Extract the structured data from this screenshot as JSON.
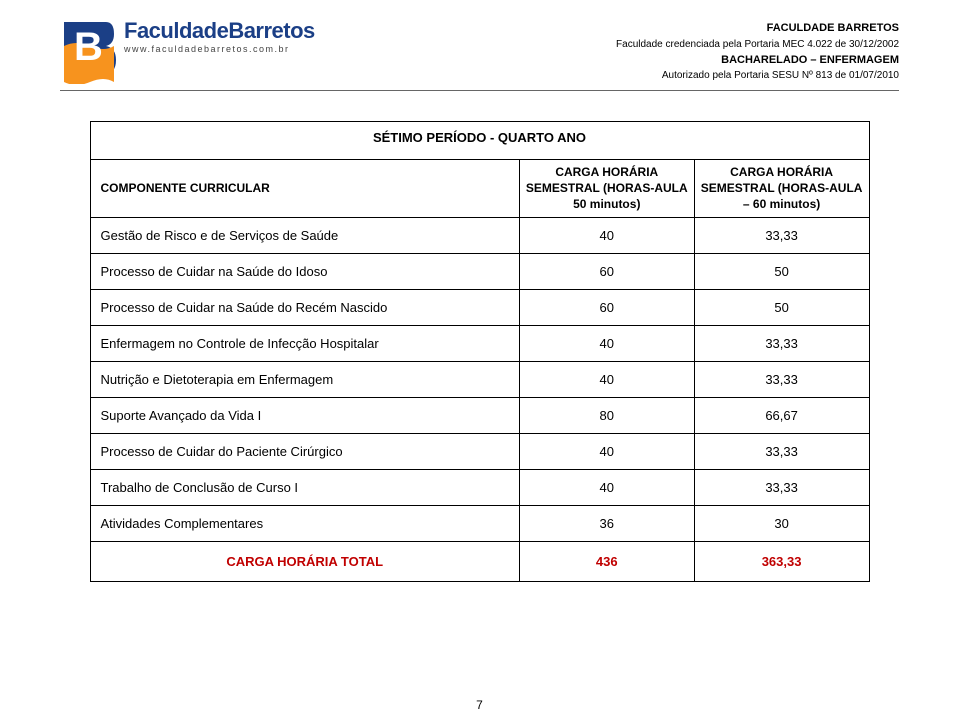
{
  "header": {
    "logo_fac": "Faculdade",
    "logo_bar": "Barretos",
    "logo_url": "www.faculdadebarretos.com.br",
    "line1": "FACULDADE BARRETOS",
    "line2": "Faculdade credenciada pela Portaria MEC 4.022 de 30/12/2002",
    "line3": "BACHARELADO – ENFERMAGEM",
    "line4": "Autorizado pela Portaria SESU Nº 813 de 01/07/2010"
  },
  "table": {
    "title": "SÉTIMO PERÍODO - QUARTO ANO",
    "columns": {
      "c1": "COMPONENTE CURRICULAR",
      "c2": "CARGA HORÁRIA SEMESTRAL (HORAS-AULA 50 minutos)",
      "c3": "CARGA HORÁRIA SEMESTRAL (HORAS-AULA – 60 minutos)"
    },
    "col_widths": {
      "c1": 430,
      "c2": 175,
      "c3": 175
    },
    "rows": [
      {
        "label": "Gestão de Risco e de Serviços de Saúde",
        "v1": "40",
        "v2": "33,33"
      },
      {
        "label": "Processo de Cuidar na Saúde do Idoso",
        "v1": "60",
        "v2": "50"
      },
      {
        "label": "Processo de Cuidar na Saúde do Recém Nascido",
        "v1": "60",
        "v2": "50"
      },
      {
        "label": "Enfermagem no Controle de Infecção Hospitalar",
        "v1": "40",
        "v2": "33,33"
      },
      {
        "label": "Nutrição e Dietoterapia em Enfermagem",
        "v1": "40",
        "v2": "33,33"
      },
      {
        "label": "Suporte Avançado da Vida I",
        "v1": "80",
        "v2": "66,67"
      },
      {
        "label": "Processo de Cuidar do Paciente Cirúrgico",
        "v1": "40",
        "v2": "33,33"
      },
      {
        "label": "Trabalho de Conclusão de Curso I",
        "v1": "40",
        "v2": "33,33"
      },
      {
        "label": "Atividades Complementares",
        "v1": "36",
        "v2": "30"
      }
    ],
    "total": {
      "label": "CARGA HORÁRIA TOTAL",
      "v1": "436",
      "v2": "363,33"
    }
  },
  "page_number": "7",
  "colors": {
    "brand": "#1b3f86",
    "accent_orange": "#f7931e",
    "total_red": "#c00000",
    "border": "#000000",
    "header_rule": "#666666"
  }
}
